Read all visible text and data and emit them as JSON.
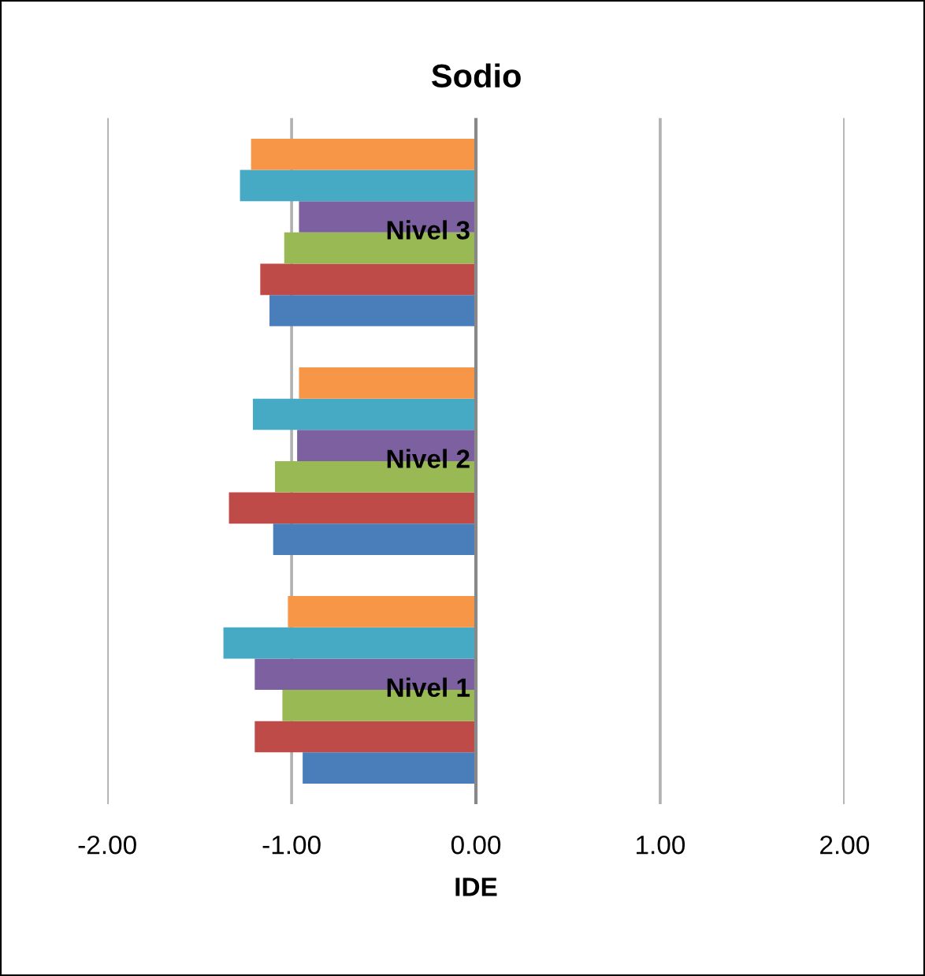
{
  "chart_data": {
    "type": "bar",
    "orientation": "horizontal",
    "title": "Sodio",
    "xlabel": "IDE",
    "categories": [
      "Nivel 3",
      "Nivel 2",
      "Nivel 1"
    ],
    "series": [
      {
        "color": "#4a7ebb",
        "values": [
          -1.12,
          -1.1,
          -0.94
        ]
      },
      {
        "color": "#be4b48",
        "values": [
          -1.17,
          -1.34,
          -1.2
        ]
      },
      {
        "color": "#98b954",
        "values": [
          -1.04,
          -1.09,
          -1.05
        ]
      },
      {
        "color": "#7d60a0",
        "values": [
          -0.96,
          -0.97,
          -1.2
        ]
      },
      {
        "color": "#46aac5",
        "values": [
          -1.28,
          -1.21,
          -1.37
        ]
      },
      {
        "color": "#f79646",
        "values": [
          -1.22,
          -0.96,
          -1.02
        ]
      }
    ],
    "xlim": [
      -2,
      2
    ],
    "xticks": [
      {
        "value": -2,
        "label": "-2.00"
      },
      {
        "value": -1,
        "label": "-1.00"
      },
      {
        "value": 0,
        "label": "0.00"
      },
      {
        "value": 1,
        "label": "1.00"
      },
      {
        "value": 2,
        "label": "2.00"
      }
    ],
    "grid": "x",
    "legend": false
  }
}
